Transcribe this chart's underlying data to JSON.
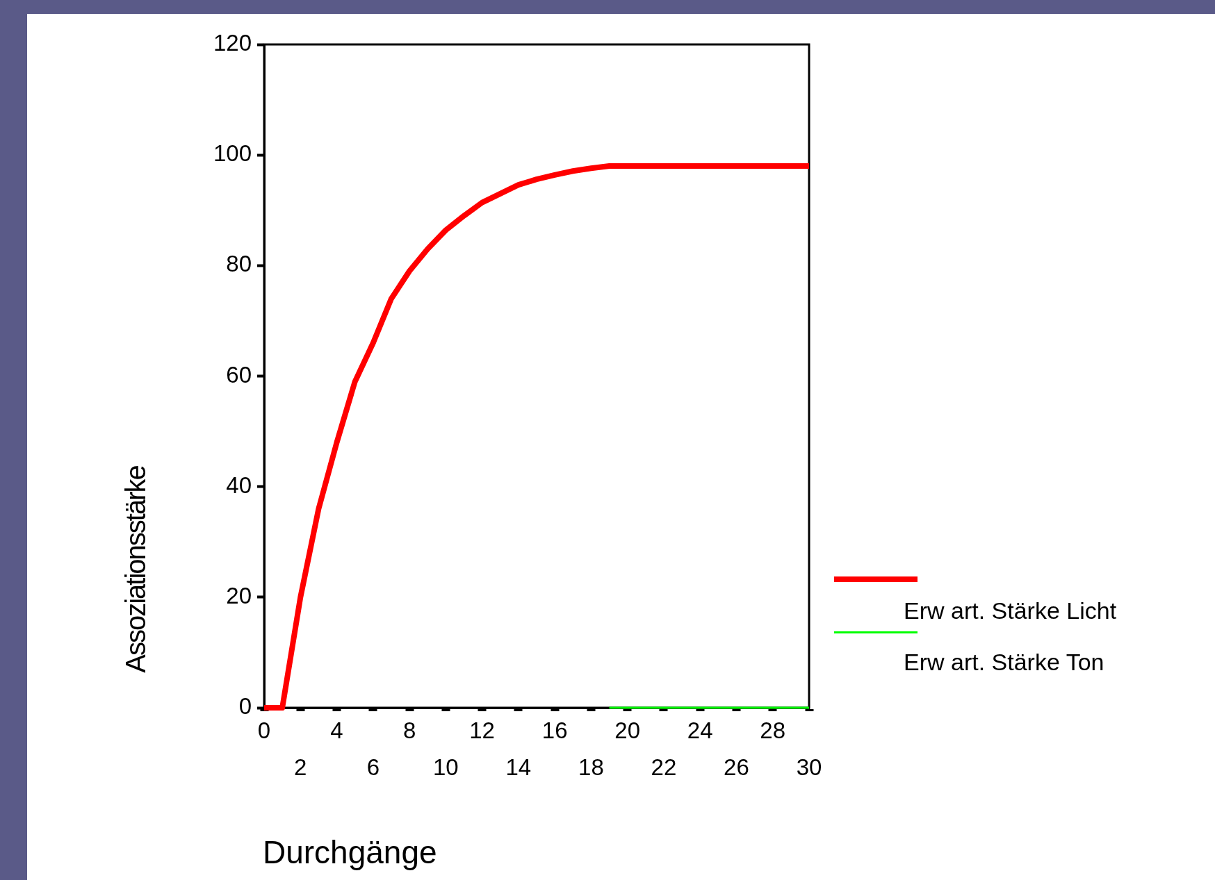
{
  "chart_data": {
    "type": "line",
    "xlabel": "Durchgänge",
    "ylabel": "Assoziationsstärke",
    "xlim": [
      0,
      30
    ],
    "xticks": [
      0,
      4,
      8,
      12,
      16,
      20,
      24,
      28
    ],
    "x2lim": [
      0,
      30
    ],
    "x2ticks": [
      2,
      6,
      10,
      14,
      18,
      22,
      26,
      30
    ],
    "ylim": [
      0,
      120
    ],
    "yticks": [
      0,
      20,
      40,
      60,
      80,
      100,
      120
    ],
    "grid": false,
    "legend": "right",
    "marker": "none",
    "line_style": "solid",
    "series": [
      {
        "name": "Erw art. Stärke Licht",
        "color": "#ff0000",
        "x": [
          0,
          1,
          2,
          3,
          4,
          5,
          6,
          7,
          8,
          9,
          10,
          11,
          12,
          13,
          14,
          15,
          16,
          17,
          18,
          19,
          20,
          22,
          24,
          26,
          28,
          30
        ],
        "values": [
          0,
          0,
          20,
          36,
          48,
          59,
          66,
          74,
          79,
          83,
          86.4,
          89,
          91.4,
          93,
          94.6,
          95.6,
          96.4,
          97.1,
          97.6,
          98,
          98,
          98,
          98,
          98,
          98,
          98
        ]
      },
      {
        "name": "Erw art. Stärke Ton",
        "color": "#00ff00",
        "x": [
          19,
          20,
          22,
          24,
          26,
          28,
          30
        ],
        "values": [
          0,
          0,
          0,
          0,
          0,
          0,
          0
        ]
      }
    ]
  }
}
